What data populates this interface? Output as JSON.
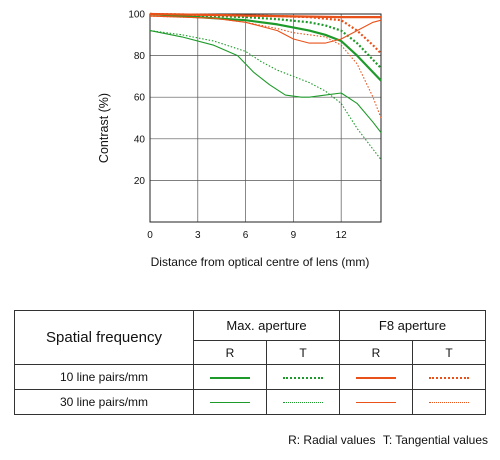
{
  "chart_data": {
    "type": "line",
    "title": "",
    "xlabel": "Distance from optical centre of lens (mm)",
    "ylabel": "Contrast (%)",
    "xlim": [
      0,
      14.5
    ],
    "ylim": [
      0,
      100
    ],
    "xticks": [
      0,
      3,
      6,
      9,
      12
    ],
    "yticks": [
      20,
      40,
      60,
      80,
      100
    ],
    "grid": true,
    "series": [
      {
        "aperture": "Max. aperture",
        "lines": "10 line pairs/mm",
        "values": "R",
        "color": "#1e9a2a",
        "points": [
          [
            0,
            100
          ],
          [
            2,
            99
          ],
          [
            4,
            98
          ],
          [
            6,
            97
          ],
          [
            8,
            95
          ],
          [
            10,
            92
          ],
          [
            11,
            90
          ],
          [
            12,
            87
          ],
          [
            13,
            80
          ],
          [
            14,
            72
          ],
          [
            14.5,
            68
          ]
        ]
      },
      {
        "aperture": "Max. aperture",
        "lines": "10 line pairs/mm",
        "values": "T",
        "color": "#1e9a2a",
        "points": [
          [
            0,
            100
          ],
          [
            2,
            99.5
          ],
          [
            4,
            99
          ],
          [
            6,
            98.5
          ],
          [
            8,
            97.5
          ],
          [
            10,
            96
          ],
          [
            11,
            94.5
          ],
          [
            12,
            92
          ],
          [
            13,
            86
          ],
          [
            14,
            78
          ],
          [
            14.5,
            74
          ]
        ]
      },
      {
        "aperture": "Max. aperture",
        "lines": "30 line pairs/mm",
        "values": "R",
        "color": "#1e9a2a",
        "points": [
          [
            0,
            92
          ],
          [
            2,
            89
          ],
          [
            4,
            85
          ],
          [
            5.5,
            80
          ],
          [
            6.5,
            72
          ],
          [
            7.5,
            66
          ],
          [
            8.5,
            61
          ],
          [
            9.5,
            60
          ],
          [
            10,
            60
          ],
          [
            11,
            61
          ],
          [
            12,
            62
          ],
          [
            13,
            57
          ],
          [
            14,
            48
          ],
          [
            14.5,
            43
          ]
        ]
      },
      {
        "aperture": "Max. aperture",
        "lines": "30 line pairs/mm",
        "values": "T",
        "color": "#1e9a2a",
        "points": [
          [
            0,
            92
          ],
          [
            2,
            90
          ],
          [
            4,
            87
          ],
          [
            6,
            82
          ],
          [
            7,
            77
          ],
          [
            8,
            73
          ],
          [
            9,
            70
          ],
          [
            10,
            67
          ],
          [
            11,
            63
          ],
          [
            12,
            57
          ],
          [
            13,
            45
          ],
          [
            14,
            35
          ],
          [
            14.5,
            30
          ]
        ]
      },
      {
        "aperture": "F8 aperture",
        "lines": "10 line pairs/mm",
        "values": "R",
        "color": "#e8521a",
        "points": [
          [
            0,
            100
          ],
          [
            4,
            99.5
          ],
          [
            8,
            99
          ],
          [
            12,
            98.5
          ],
          [
            14,
            98.5
          ],
          [
            14.5,
            98.5
          ]
        ]
      },
      {
        "aperture": "F8 aperture",
        "lines": "10 line pairs/mm",
        "values": "T",
        "color": "#e8521a",
        "points": [
          [
            0,
            100
          ],
          [
            4,
            99.5
          ],
          [
            8,
            99
          ],
          [
            10,
            98.5
          ],
          [
            12,
            97
          ],
          [
            13,
            92
          ],
          [
            14,
            85
          ],
          [
            14.5,
            81
          ]
        ]
      },
      {
        "aperture": "F8 aperture",
        "lines": "30 line pairs/mm",
        "values": "R",
        "color": "#e8521a",
        "points": [
          [
            0,
            99
          ],
          [
            4,
            98
          ],
          [
            6,
            96
          ],
          [
            8,
            92
          ],
          [
            9,
            88
          ],
          [
            10,
            86
          ],
          [
            11,
            86
          ],
          [
            12,
            88
          ],
          [
            13,
            92
          ],
          [
            14,
            96
          ],
          [
            14.5,
            97
          ]
        ]
      },
      {
        "aperture": "F8 aperture",
        "lines": "30 line pairs/mm",
        "values": "T",
        "color": "#e8521a",
        "points": [
          [
            0,
            99
          ],
          [
            4,
            98
          ],
          [
            6,
            96
          ],
          [
            8,
            93
          ],
          [
            9,
            91
          ],
          [
            10,
            90
          ],
          [
            11,
            89
          ],
          [
            12,
            85
          ],
          [
            13,
            76
          ],
          [
            14,
            60
          ],
          [
            14.5,
            50
          ]
        ]
      }
    ]
  },
  "legend": {
    "header": "Spatial frequency",
    "groups": [
      "Max. aperture",
      "F8 aperture"
    ],
    "subheaders": [
      "R",
      "T",
      "R",
      "T"
    ],
    "rows": [
      "10 line pairs/mm",
      "30 line pairs/mm"
    ],
    "colors": {
      "max": "#1e9a2a",
      "f8": "#e8521a"
    }
  },
  "footnote": {
    "radial": "R: Radial values",
    "tangential": "T: Tangential values"
  }
}
